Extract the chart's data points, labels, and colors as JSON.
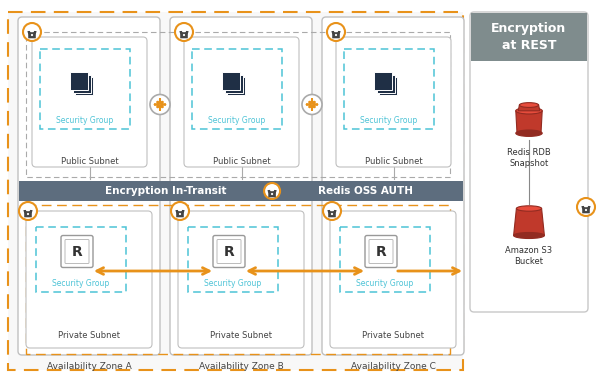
{
  "bg_color": "#ffffff",
  "orange_dash_color": "#e8921a",
  "blue_dash_color": "#4dc3d6",
  "dark_blue_icon": "#1f2f45",
  "red_color": "#c0392b",
  "red_dark": "#922b21",
  "red_light": "#e74c3c",
  "banner_color": "#5d6d7e",
  "enc_rest_header_color": "#7f8c8d",
  "white": "#ffffff",
  "light_gray": "#f8f8f8",
  "mid_gray": "#aaaaaa",
  "dark_gray": "#555555",
  "title_enc_rest": "Encryption\nat REST",
  "label_enc_transit": "Encryption In-Transit",
  "label_redis_auth": "Redis OSS AUTH",
  "az_labels": [
    "Availability Zone A",
    "Availability Zone B",
    "Availability Zone C"
  ],
  "pub_subnet_label": "Public Subnet",
  "priv_subnet_label": "Private Subnet",
  "sec_group_label": "Security Group",
  "redis_rdb_label": "Redis RDB\nSnapshot",
  "s3_label": "Amazon S3\nBucket"
}
